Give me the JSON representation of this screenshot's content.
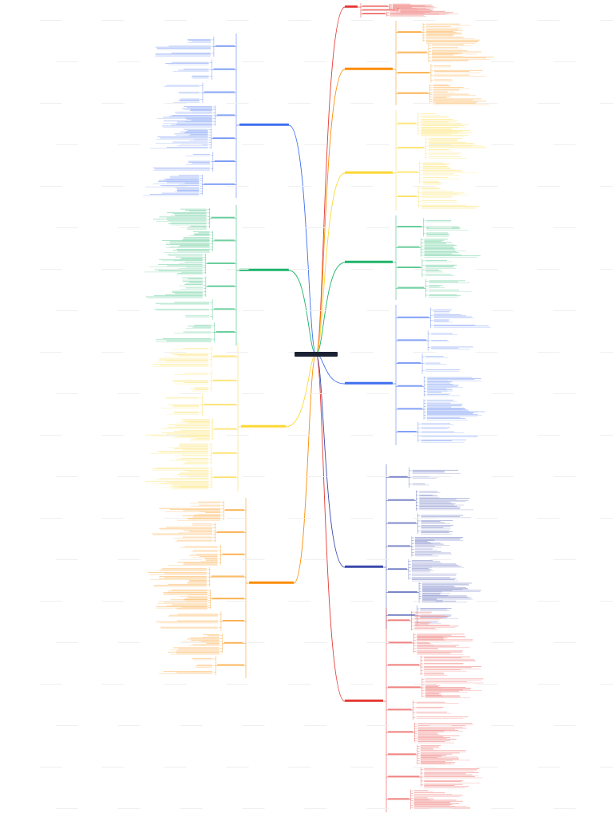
{
  "watermark": {
    "top": "",
    "bottom": ""
  },
  "root": {
    "label": "",
    "color": "#1b2233"
  },
  "branches": [
    {
      "id": "r1",
      "side": "right",
      "color": "#e53935",
      "label": ""
    },
    {
      "id": "r2",
      "side": "right",
      "color": "#fb8c00",
      "label": ""
    },
    {
      "id": "r3",
      "side": "right",
      "color": "#fdd835",
      "label": ""
    },
    {
      "id": "r4",
      "side": "right",
      "color": "#1db46a",
      "label": ""
    },
    {
      "id": "r5",
      "side": "right",
      "color": "#3f6ff0",
      "label": ""
    },
    {
      "id": "r6",
      "side": "right",
      "color": "#3949ab",
      "label": ""
    },
    {
      "id": "r7",
      "side": "right",
      "color": "#e53935",
      "label": ""
    },
    {
      "id": "l1",
      "side": "left",
      "color": "#3f6ff0",
      "label": ""
    },
    {
      "id": "l2",
      "side": "left",
      "color": "#1db46a",
      "label": ""
    },
    {
      "id": "l3",
      "side": "left",
      "color": "#fdd835",
      "label": ""
    },
    {
      "id": "l4",
      "side": "left",
      "color": "#fb8c00",
      "label": ""
    }
  ]
}
